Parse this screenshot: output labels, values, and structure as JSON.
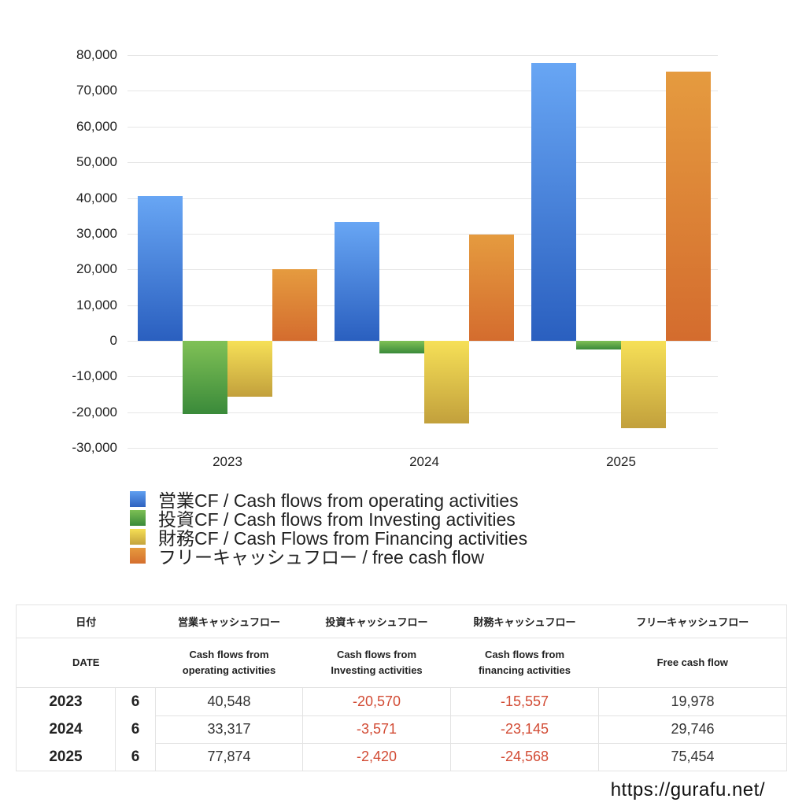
{
  "chart_data": {
    "type": "bar",
    "title": "",
    "xlabel": "",
    "ylabel": "",
    "categories": [
      "2023",
      "2024",
      "2025"
    ],
    "ylim": [
      -30000,
      80000
    ],
    "yticks": [
      "80,000",
      "70,000",
      "60,000",
      "50,000",
      "40,000",
      "30,000",
      "20,000",
      "10,000",
      "0",
      "-10,000",
      "-20,000",
      "-30,000"
    ],
    "grid": true,
    "legend_position": "bottom",
    "series": [
      {
        "name": "営業CF / Cash flows from operating activities",
        "color": "#3f7fd6",
        "values": [
          40548,
          33317,
          77874
        ]
      },
      {
        "name": "投資CF / Cash flows from Investing activities",
        "color": "#4a9a3f",
        "values": [
          -20570,
          -3571,
          -2420
        ]
      },
      {
        "name": "財務CF / Cash Flows from Financing activities",
        "color": "#e2c84a",
        "values": [
          -15557,
          -23145,
          -24568
        ]
      },
      {
        "name": "フリーキャッシュフロー / free cash flow",
        "color": "#de8a38",
        "values": [
          19978,
          29746,
          75454
        ]
      }
    ]
  },
  "legend": {
    "items": [
      "営業CF / Cash flows from operating activities",
      "投資CF / Cash flows from Investing activities",
      "財務CF / Cash Flows from Financing activities",
      "フリーキャッシュフロー / free cash flow"
    ]
  },
  "table": {
    "header_jp": [
      "日付",
      "営業キャッシュフロー",
      "投資キャッシュフロー",
      "財務キャッシュフロー",
      "フリーキャッシュフロー"
    ],
    "header_en": [
      "DATE",
      "Cash flows from operating activities",
      "Cash flows from Investing activities",
      "Cash flows from financing activities",
      "Free cash flow"
    ],
    "rows": [
      {
        "year": "2023",
        "month": "6",
        "operating": "40,548",
        "investing": "-20,570",
        "financing": "-15,557",
        "free": "19,978"
      },
      {
        "year": "2024",
        "month": "6",
        "operating": "33,317",
        "investing": "-3,571",
        "financing": "-23,145",
        "free": "29,746"
      },
      {
        "year": "2025",
        "month": "6",
        "operating": "77,874",
        "investing": "-2,420",
        "financing": "-24,568",
        "free": "75,454"
      }
    ]
  },
  "footer": {
    "url": "https://gurafu.net/"
  }
}
